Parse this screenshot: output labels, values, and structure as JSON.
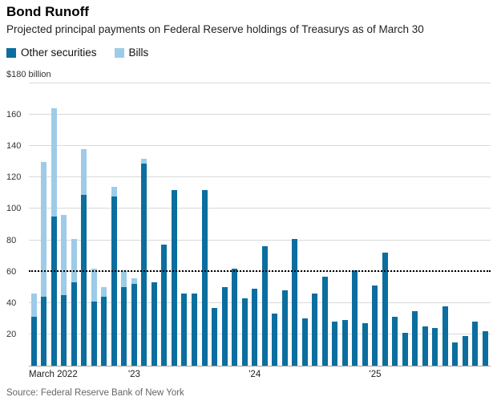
{
  "header": {
    "title": "Bond Runoff",
    "subtitle": "Projected principal payments on Federal Reserve holdings of Treasurys as of March 30"
  },
  "legend": [
    {
      "label": "Other securities",
      "color": "#0b6e9f"
    },
    {
      "label": "Bills",
      "color": "#9dcbe8"
    }
  ],
  "source": "Source: Federal Reserve Bank of New York",
  "chart_data": {
    "type": "bar",
    "stacked": true,
    "title": "Bond Runoff",
    "unit_label": "$180 billion",
    "ylabel": "billions of dollars",
    "ylim": [
      0,
      180
    ],
    "grid_step": 20,
    "grid": true,
    "cap_line_value": 60,
    "legend_position": "top-left",
    "x_tick_labels": [
      {
        "index": 0,
        "label": "March 2022",
        "align": "left"
      },
      {
        "index": 10,
        "label": "'23",
        "align": "center"
      },
      {
        "index": 22,
        "label": "'24",
        "align": "center"
      },
      {
        "index": 34,
        "label": "'25",
        "align": "center"
      }
    ],
    "categories": [
      "Mar 2022",
      "Apr 2022",
      "May 2022",
      "Jun 2022",
      "Jul 2022",
      "Aug 2022",
      "Sep 2022",
      "Oct 2022",
      "Nov 2022",
      "Dec 2022",
      "Jan 2023",
      "Feb 2023",
      "Mar 2023",
      "Apr 2023",
      "May 2023",
      "Jun 2023",
      "Jul 2023",
      "Aug 2023",
      "Sep 2023",
      "Oct 2023",
      "Nov 2023",
      "Dec 2023",
      "Jan 2024",
      "Feb 2024",
      "Mar 2024",
      "Apr 2024",
      "May 2024",
      "Jun 2024",
      "Jul 2024",
      "Aug 2024",
      "Sep 2024",
      "Oct 2024",
      "Nov 2024",
      "Dec 2024",
      "Jan 2025",
      "Feb 2025",
      "Mar 2025",
      "Apr 2025",
      "May 2025",
      "Jun 2025",
      "Jul 2025",
      "Aug 2025",
      "Sep 2025",
      "Oct 2025",
      "Nov 2025",
      "Dec 2025"
    ],
    "series": [
      {
        "name": "Other securities",
        "color": "#0b6e9f",
        "values": [
          31,
          44,
          95,
          45,
          53,
          109,
          41,
          44,
          108,
          50,
          52,
          129,
          53,
          77,
          112,
          46,
          46,
          112,
          37,
          50,
          62,
          43,
          49,
          76,
          33,
          48,
          81,
          30,
          46,
          57,
          28,
          29,
          61,
          27,
          51,
          72,
          31,
          21,
          35,
          25,
          24,
          38,
          15,
          19,
          28,
          22
        ]
      },
      {
        "name": "Bills",
        "color": "#9dcbe8",
        "values": [
          15,
          86,
          69,
          51,
          28,
          29,
          21,
          6,
          6,
          11,
          4,
          3,
          0,
          0,
          0,
          0,
          0,
          0,
          0,
          0,
          0,
          0,
          0,
          0,
          0,
          0,
          0,
          0,
          0,
          0,
          0,
          0,
          0,
          0,
          0,
          0,
          0,
          0,
          0,
          0,
          0,
          0,
          0,
          0,
          0,
          0
        ]
      }
    ]
  }
}
